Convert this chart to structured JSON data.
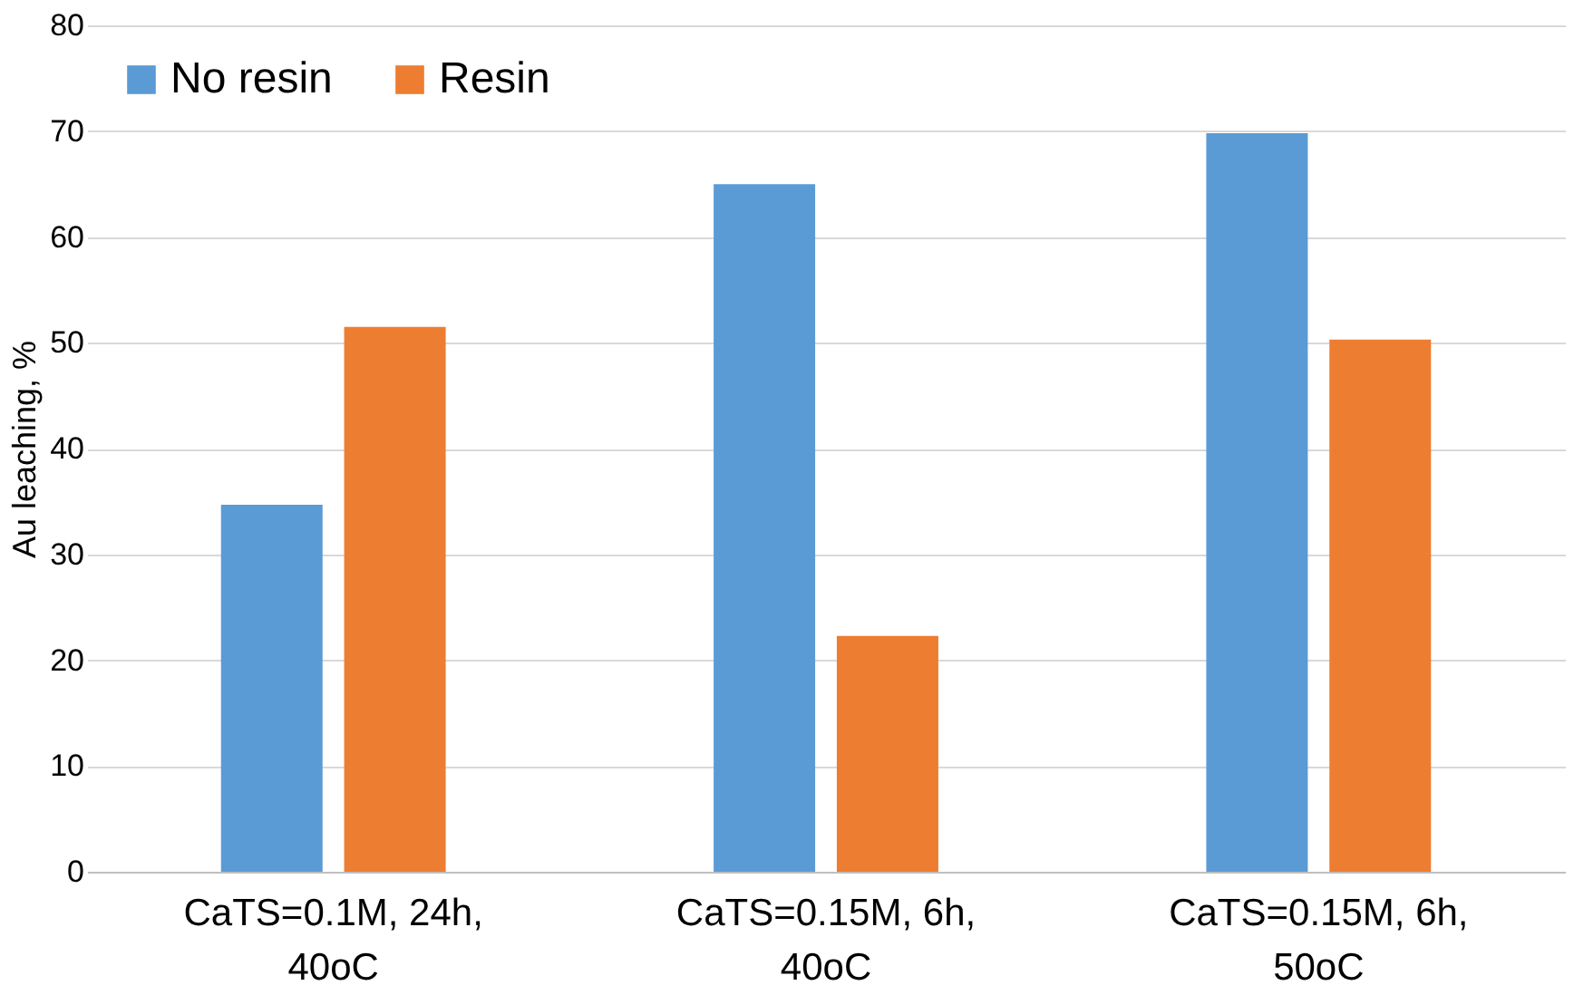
{
  "chart_data": {
    "type": "bar",
    "ylabel": "Au leaching, %",
    "categories": [
      "CaTS=0.1M, 24h,\n40oC",
      "CaTS=0.15M, 6h,\n40oC",
      "CaTS=0.15M, 6h,\n50oC"
    ],
    "series": [
      {
        "name": "No resin",
        "color": "#5b9bd5",
        "values": [
          34.7,
          65,
          69.8
        ]
      },
      {
        "name": "Resin",
        "color": "#ed7d31",
        "values": [
          51.5,
          22.3,
          50.3
        ]
      }
    ],
    "ylim": [
      0,
      80
    ],
    "yticks": [
      0,
      10,
      20,
      30,
      40,
      50,
      60,
      70,
      80
    ],
    "grid": "y",
    "legend": "top left"
  }
}
